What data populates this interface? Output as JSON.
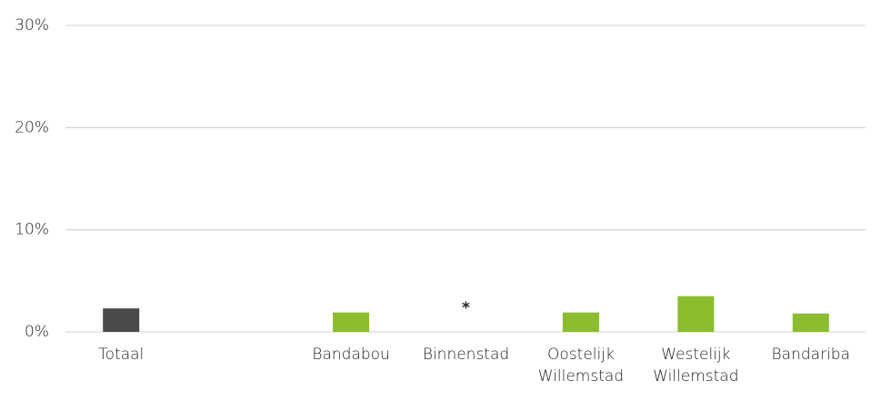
{
  "chart_data": {
    "type": "bar",
    "categories": [
      "Totaal",
      null,
      "Bandabou",
      "Binnenstad",
      "Oostelijk Willemstad",
      "Westelijk Willemstad",
      "Bandariba"
    ],
    "values": [
      2.3,
      null,
      1.9,
      null,
      1.9,
      3.5,
      1.8
    ],
    "value_labels": [
      null,
      null,
      null,
      "*",
      null,
      null,
      null
    ],
    "colors": [
      "#4a4a4a",
      null,
      "#8bbd2f",
      null,
      "#8bbd2f",
      "#8bbd2f",
      "#8bbd2f"
    ],
    "ylim": [
      0,
      30
    ],
    "yticks": [
      {
        "value": 0,
        "label": "0%"
      },
      {
        "value": 10,
        "label": "10%"
      },
      {
        "value": 20,
        "label": "20%"
      },
      {
        "value": 30,
        "label": "30%"
      }
    ],
    "grid": true
  }
}
